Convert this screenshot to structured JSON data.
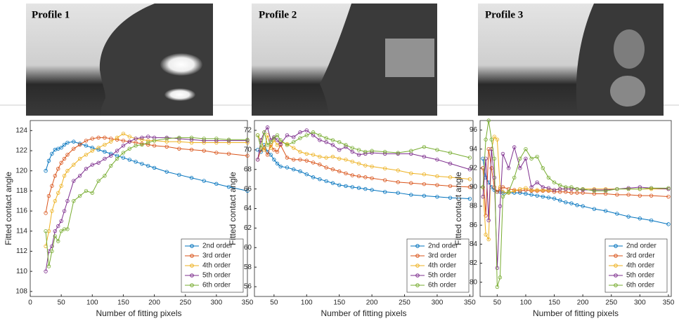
{
  "images": [
    {
      "title": "Profile 1"
    },
    {
      "title": "Profile 2"
    },
    {
      "title": "Profile 3"
    }
  ],
  "chart_data": [
    {
      "type": "line",
      "xlabel": "Number of fitting pixels",
      "ylabel": "Fitted contact angle",
      "legend": "lower right",
      "marker": "circle",
      "x": [
        25,
        30,
        35,
        40,
        45,
        50,
        55,
        60,
        70,
        80,
        90,
        100,
        110,
        120,
        130,
        140,
        150,
        160,
        170,
        180,
        190,
        200,
        220,
        240,
        260,
        280,
        300,
        320,
        350
      ],
      "xlim": [
        0,
        350
      ],
      "xticks": [
        0,
        50,
        100,
        150,
        200,
        250,
        300,
        350
      ],
      "ylim": [
        107.5,
        125
      ],
      "yticks": [
        108,
        110,
        112,
        114,
        116,
        118,
        120,
        122,
        124
      ],
      "series": [
        {
          "name": "2nd order",
          "color": "#0072BD",
          "values": [
            120,
            121,
            121.7,
            122.1,
            122.2,
            122.3,
            122.6,
            122.8,
            122.9,
            122.7,
            122.5,
            122.3,
            122.1,
            121.9,
            121.7,
            121.5,
            121.3,
            121.1,
            120.9,
            120.7,
            120.5,
            120.3,
            119.9,
            119.6,
            119.3,
            119,
            118.7,
            118.4,
            118
          ]
        },
        {
          "name": "3rd order",
          "color": "#D95319",
          "values": [
            115.8,
            117.5,
            118.5,
            119.5,
            120.2,
            120.8,
            121.2,
            121.6,
            122.2,
            122.6,
            123,
            123.2,
            123.3,
            123.3,
            123.2,
            123.1,
            123,
            122.9,
            122.8,
            122.7,
            122.6,
            122.5,
            122.4,
            122.2,
            122.1,
            122,
            121.8,
            121.7,
            121.5
          ]
        },
        {
          "name": "4th order",
          "color": "#EDB120",
          "values": [
            112.5,
            114,
            116,
            117,
            117.8,
            118.5,
            119.5,
            120,
            120.6,
            121.2,
            121.6,
            122,
            122.3,
            122.6,
            122.9,
            123.3,
            123.7,
            123.4,
            123.2,
            123.1,
            123,
            123,
            122.9,
            122.9,
            122.8,
            122.8,
            122.8,
            122.8,
            122.8
          ]
        },
        {
          "name": "5th order",
          "color": "#7E2F8E",
          "values": [
            110,
            112,
            112.5,
            114,
            114.5,
            115,
            116,
            117,
            119,
            119.5,
            120.2,
            120.6,
            120.8,
            121.2,
            121.5,
            122,
            122.5,
            122.9,
            123.2,
            123.3,
            123.4,
            123.3,
            123.3,
            123.2,
            123.1,
            123,
            123,
            123,
            123
          ]
        },
        {
          "name": "6th order",
          "color": "#77AC30",
          "values": [
            114,
            110.5,
            112,
            113.5,
            113,
            114,
            114.2,
            114.2,
            117,
            117.5,
            118,
            117.8,
            119,
            119.5,
            120.5,
            121.2,
            121.8,
            122.2,
            122.5,
            122.6,
            122.8,
            123,
            123.2,
            123.3,
            123.3,
            123.2,
            123.2,
            123.1,
            123.1
          ]
        }
      ]
    },
    {
      "type": "line",
      "xlabel": "Number of fitting pixels",
      "ylabel": "Fitted contact angle",
      "legend": "lower right",
      "marker": "circle",
      "x": [
        25,
        30,
        35,
        40,
        45,
        50,
        55,
        60,
        70,
        80,
        90,
        100,
        110,
        120,
        130,
        140,
        150,
        160,
        170,
        180,
        190,
        200,
        220,
        240,
        260,
        280,
        300,
        320,
        350
      ],
      "xlim": [
        20,
        355
      ],
      "xticks": [
        50,
        100,
        150,
        200,
        250,
        300,
        350
      ],
      "ylim": [
        55,
        73
      ],
      "yticks": [
        56,
        58,
        60,
        62,
        64,
        66,
        68,
        70,
        72
      ],
      "series": [
        {
          "name": "2nd order",
          "color": "#0072BD",
          "values": [
            70,
            69.8,
            70.5,
            69.8,
            69.5,
            69,
            68.6,
            68.3,
            68.2,
            68,
            67.8,
            67.5,
            67.2,
            67,
            66.8,
            66.6,
            66.4,
            66.3,
            66.2,
            66.1,
            66,
            65.9,
            65.7,
            65.6,
            65.4,
            65.3,
            65.2,
            65.1,
            65
          ]
        },
        {
          "name": "3rd order",
          "color": "#D95319",
          "values": [
            69,
            70,
            70.2,
            69.5,
            70.5,
            70,
            69.8,
            70.5,
            69.2,
            69,
            69,
            68.9,
            68.7,
            68.5,
            68.2,
            68,
            67.8,
            67.6,
            67.4,
            67.3,
            67.2,
            67.1,
            66.9,
            66.7,
            66.6,
            66.5,
            66.4,
            66.3,
            66.2
          ]
        },
        {
          "name": "4th order",
          "color": "#EDB120",
          "values": [
            71.5,
            71,
            70,
            71.5,
            70.2,
            71,
            70.5,
            70.8,
            70.6,
            70.2,
            69.8,
            69.6,
            69.5,
            69.3,
            69.2,
            69.3,
            69.1,
            69,
            68.8,
            68.6,
            68.4,
            68.3,
            68.1,
            67.9,
            67.6,
            67.5,
            67.3,
            67.2,
            67
          ]
        },
        {
          "name": "5th order",
          "color": "#7E2F8E",
          "values": [
            69,
            71,
            71.8,
            72.3,
            71,
            71.3,
            71,
            70.6,
            71.5,
            71.3,
            71.8,
            72,
            71.5,
            71,
            70.8,
            70.5,
            70,
            70.3,
            69.8,
            69.5,
            69.6,
            69.7,
            69.6,
            69.6,
            69.6,
            69.3,
            69,
            68.6,
            68
          ]
        },
        {
          "name": "6th order",
          "color": "#77AC30",
          "values": [
            71.5,
            70.2,
            71.8,
            70.5,
            70.8,
            71.2,
            71.5,
            71,
            70.5,
            70.8,
            71.2,
            71.5,
            71.8,
            71.5,
            71.2,
            71,
            70.8,
            70.5,
            70.2,
            70,
            69.8,
            69.9,
            69.8,
            69.7,
            69.9,
            70.3,
            70,
            69.7,
            69.2
          ]
        }
      ]
    },
    {
      "type": "line",
      "xlabel": "Number of fitting pixels",
      "ylabel": "Fitted contact angle",
      "legend": "lower right",
      "marker": "circle",
      "x": [
        25,
        30,
        35,
        40,
        45,
        50,
        55,
        60,
        70,
        80,
        90,
        100,
        110,
        120,
        130,
        140,
        150,
        160,
        170,
        180,
        190,
        200,
        220,
        240,
        260,
        280,
        300,
        320,
        350
      ],
      "xlim": [
        20,
        355
      ],
      "xticks": [
        50,
        100,
        150,
        200,
        250,
        300,
        350
      ],
      "ylim": [
        78.5,
        97
      ],
      "yticks": [
        80,
        82,
        84,
        86,
        88,
        90,
        92,
        94,
        96
      ],
      "series": [
        {
          "name": "2nd order",
          "color": "#0072BD",
          "values": [
            93,
            91,
            90.5,
            90,
            89.7,
            89.5,
            89.5,
            89.4,
            89.4,
            89.4,
            89.4,
            89.3,
            89.2,
            89.1,
            89,
            88.9,
            88.8,
            88.6,
            88.4,
            88.3,
            88.1,
            88,
            87.7,
            87.5,
            87.2,
            86.9,
            86.7,
            86.5,
            86.1
          ]
        },
        {
          "name": "3rd order",
          "color": "#D95319",
          "values": [
            92,
            87,
            94,
            92,
            90,
            89.5,
            89.8,
            90,
            89.8,
            89.7,
            89.6,
            89.7,
            89.6,
            89.6,
            89.6,
            89.6,
            89.5,
            89.5,
            89.5,
            89.4,
            89.4,
            89.4,
            89.3,
            89.3,
            89.2,
            89.2,
            89.1,
            89.1,
            89
          ]
        },
        {
          "name": "4th order",
          "color": "#EDB120",
          "values": [
            90,
            85,
            84.5,
            94,
            95.3,
            95,
            90,
            89.5,
            89.4,
            89.6,
            89.8,
            89.9,
            89.7,
            89.7,
            89.7,
            89.7,
            89.7,
            89.8,
            89.8,
            89.8,
            89.8,
            89.8,
            89.8,
            89.8,
            89.8,
            89.8,
            89.8,
            89.8,
            89.8
          ]
        },
        {
          "name": "5th order",
          "color": "#7E2F8E",
          "values": [
            89,
            93,
            86.5,
            94,
            91,
            81.5,
            88,
            93.5,
            92,
            94.2,
            92,
            93,
            90,
            90.5,
            90,
            89.9,
            89.7,
            89.8,
            89.8,
            89.8,
            89.8,
            89.7,
            89.7,
            89.7,
            89.8,
            89.9,
            90,
            89.9,
            89.8
          ]
        },
        {
          "name": "6th order",
          "color": "#77AC30",
          "values": [
            90,
            95,
            97,
            95,
            93,
            79.5,
            80.5,
            89,
            89.5,
            91,
            93,
            94,
            93,
            93.2,
            92,
            91,
            90.5,
            90.2,
            90,
            90,
            89.8,
            89.8,
            89.6,
            89.6,
            89.8,
            89.8,
            89.8,
            89.9,
            89.9
          ]
        }
      ]
    }
  ]
}
